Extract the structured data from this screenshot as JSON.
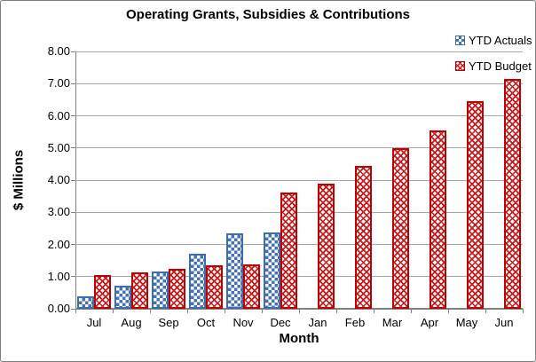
{
  "chart_data": {
    "type": "bar",
    "title": "Operating Grants, Subsidies & Contributions",
    "xlabel": "Month",
    "ylabel": "$ Millions",
    "categories": [
      "Jul",
      "Aug",
      "Sep",
      "Oct",
      "Nov",
      "Dec",
      "Jan",
      "Feb",
      "Mar",
      "Apr",
      "May",
      "Jun"
    ],
    "series": [
      {
        "name": "YTD Actuals",
        "color": "#4472b8",
        "border_color": "#3e6cb0",
        "pattern": "checker",
        "values": [
          0.4,
          0.72,
          1.16,
          1.7,
          2.35,
          2.36,
          null,
          null,
          null,
          null,
          null,
          null
        ]
      },
      {
        "name": "YTD Budget",
        "color": "#cb1a1c",
        "border_color": "#c00000",
        "pattern": "weave",
        "values": [
          1.05,
          1.12,
          1.25,
          1.34,
          1.38,
          3.62,
          3.9,
          4.45,
          5.0,
          5.55,
          6.45,
          7.15
        ]
      }
    ],
    "ylim": [
      0,
      8
    ],
    "ytick_step": 1,
    "ytick_labels": [
      "0.00",
      "1.00",
      "2.00",
      "3.00",
      "4.00",
      "5.00",
      "6.00",
      "7.00",
      "8.00"
    ],
    "grid": true,
    "legend_position": "top-right",
    "legend_entries": [
      "YTD Actuals",
      "YTD Budget"
    ]
  },
  "colors": {
    "background": "#ffffff",
    "figure_border": "#7f7f7f",
    "gridline": "#a6a6a6",
    "axis": "#808080",
    "text": "#000000"
  }
}
